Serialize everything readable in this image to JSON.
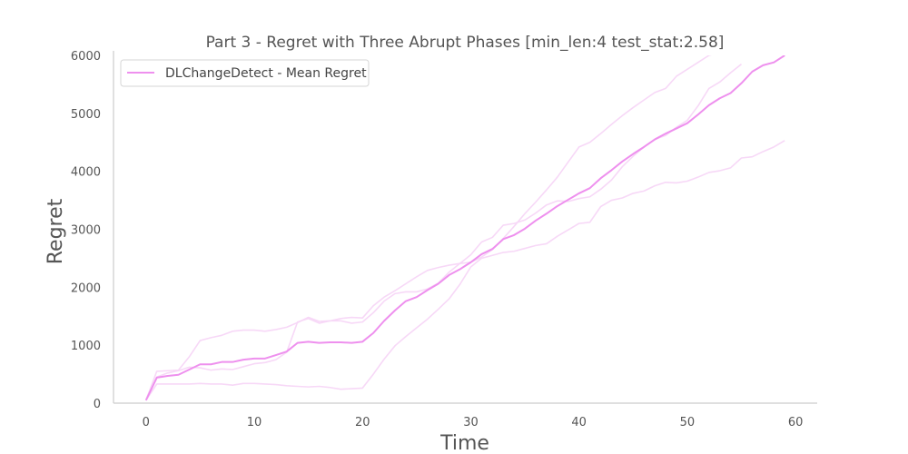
{
  "chart_data": {
    "type": "line",
    "title": "Part 3 - Regret with Three Abrupt Phases [min_len:4 test_stat:2.58]",
    "xlabel": "Time",
    "ylabel": "Regret",
    "xlim": [
      -3,
      62
    ],
    "ylim": [
      0,
      6000
    ],
    "xticks": [
      0,
      10,
      20,
      30,
      40,
      50,
      60
    ],
    "yticks": [
      0,
      1000,
      2000,
      3000,
      4000,
      5000,
      6000
    ],
    "grid": false,
    "legend_position": "top-left",
    "colors": {
      "mean": "#ee90ee",
      "run": "#f7d8f7",
      "axis": "#cccccc"
    },
    "series": [
      {
        "name": "DLChangeDetect - Mean Regret",
        "role": "mean",
        "x": [
          0,
          1,
          2,
          3,
          4,
          5,
          6,
          7,
          8,
          9,
          10,
          11,
          12,
          13,
          14,
          15,
          16,
          17,
          18,
          19,
          20,
          21,
          22,
          23,
          24,
          25,
          26,
          27,
          28,
          29,
          30,
          31,
          32,
          33,
          34,
          35,
          36,
          37,
          38,
          39,
          40,
          41,
          42,
          43,
          44,
          45,
          46,
          47,
          48,
          49,
          50,
          51,
          52,
          53,
          54,
          55,
          56,
          57,
          58,
          59
        ],
        "values": [
          50,
          440,
          470,
          490,
          580,
          670,
          670,
          710,
          710,
          750,
          770,
          770,
          830,
          890,
          1040,
          1060,
          1040,
          1050,
          1050,
          1040,
          1060,
          1210,
          1420,
          1600,
          1760,
          1830,
          1950,
          2060,
          2210,
          2310,
          2430,
          2570,
          2660,
          2830,
          2900,
          3010,
          3150,
          3270,
          3400,
          3510,
          3620,
          3710,
          3880,
          4020,
          4170,
          4300,
          4420,
          4550,
          4650,
          4740,
          4830,
          4980,
          5140,
          5260,
          5350,
          5520,
          5720,
          5830,
          5880,
          6000
        ]
      },
      {
        "role": "run",
        "x": [
          0,
          1,
          2,
          3,
          4,
          5,
          6,
          7,
          8,
          9,
          10,
          11,
          12,
          13,
          14,
          15,
          16,
          17,
          18,
          19,
          20,
          21,
          22,
          23,
          24,
          25,
          26,
          27,
          28,
          29,
          30,
          31,
          32,
          33,
          34,
          35,
          36,
          37,
          38,
          39,
          40,
          41,
          42,
          43,
          44,
          45,
          46,
          47,
          48,
          49,
          50,
          51,
          52,
          53,
          54,
          55,
          56,
          57,
          58,
          59
        ],
        "values": [
          50,
          330,
          330,
          330,
          330,
          340,
          330,
          330,
          310,
          340,
          340,
          330,
          320,
          300,
          290,
          280,
          290,
          270,
          240,
          250,
          260,
          500,
          760,
          990,
          1150,
          1300,
          1450,
          1620,
          1800,
          2050,
          2350,
          2500,
          2550,
          2600,
          2620,
          2670,
          2720,
          2750,
          2880,
          2990,
          3100,
          3120,
          3390,
          3500,
          3540,
          3620,
          3660,
          3750,
          3810,
          3800,
          3830,
          3900,
          3980,
          4010,
          4060,
          4230,
          4250,
          4340,
          4420,
          4530
        ]
      },
      {
        "role": "run",
        "x": [
          0,
          1,
          2,
          3,
          4,
          5,
          6,
          7,
          8,
          9,
          10,
          11,
          12,
          13,
          14,
          15,
          16,
          17,
          18,
          19,
          20,
          21,
          22,
          23,
          24,
          25,
          26,
          27,
          28,
          29,
          30,
          31,
          32,
          33,
          34,
          35,
          36,
          37,
          38,
          39,
          40,
          41,
          42,
          43,
          44,
          45,
          46,
          47,
          48,
          49,
          50,
          51,
          52,
          53,
          54,
          55
        ],
        "values": [
          50,
          550,
          560,
          570,
          800,
          1080,
          1130,
          1170,
          1240,
          1260,
          1260,
          1240,
          1270,
          1310,
          1390,
          1480,
          1410,
          1420,
          1460,
          1480,
          1470,
          1680,
          1830,
          1940,
          2060,
          2180,
          2290,
          2340,
          2380,
          2410,
          2430,
          2520,
          2650,
          2840,
          3050,
          3270,
          3470,
          3680,
          3900,
          4160,
          4420,
          4500,
          4650,
          4810,
          4960,
          5100,
          5230,
          5360,
          5430,
          5640,
          5760,
          5880,
          6000,
          6050,
          6080,
          6150
        ]
      },
      {
        "role": "run",
        "x": [
          0,
          1,
          2,
          3,
          4,
          5,
          6,
          7,
          8,
          9,
          10,
          11,
          12,
          13,
          14,
          15,
          16,
          17,
          18,
          19,
          20,
          21,
          22,
          23,
          24,
          25,
          26,
          27,
          28,
          29,
          30,
          31,
          32,
          33,
          34,
          35,
          36,
          37,
          38,
          39,
          40,
          41,
          42,
          43,
          44,
          45,
          46,
          47,
          48,
          49,
          50,
          51,
          52,
          53,
          54,
          55
        ],
        "values": [
          50,
          450,
          520,
          560,
          620,
          610,
          570,
          590,
          580,
          630,
          680,
          700,
          750,
          880,
          1400,
          1460,
          1380,
          1420,
          1420,
          1380,
          1400,
          1560,
          1760,
          1890,
          1920,
          1920,
          1970,
          2070,
          2260,
          2410,
          2560,
          2780,
          2860,
          3070,
          3100,
          3160,
          3280,
          3420,
          3490,
          3480,
          3530,
          3560,
          3690,
          3850,
          4080,
          4260,
          4420,
          4550,
          4620,
          4760,
          4880,
          5130,
          5430,
          5540,
          5700,
          5850
        ]
      }
    ]
  }
}
